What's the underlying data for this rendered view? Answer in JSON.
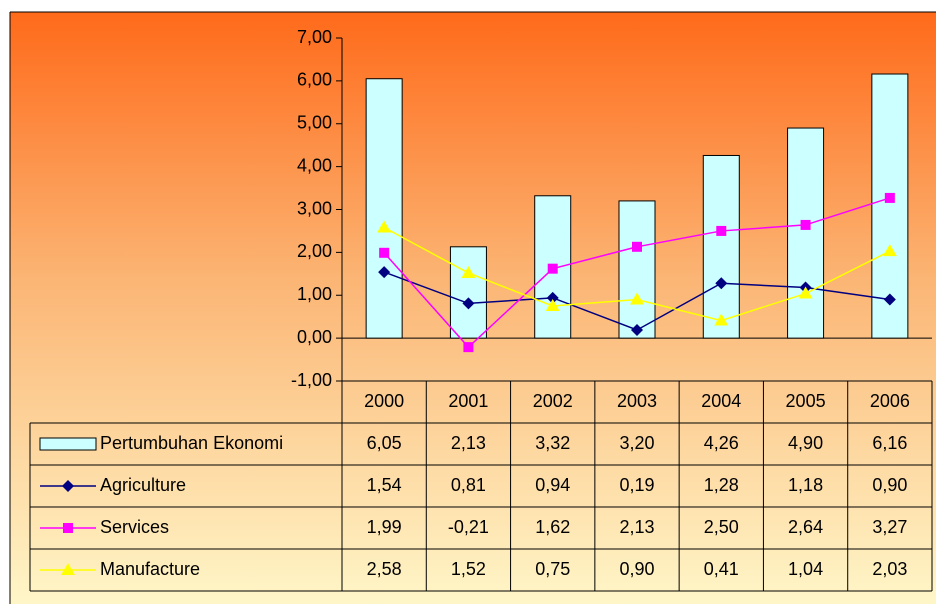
{
  "chart_data": {
    "type": "combo",
    "categories": [
      "2000",
      "2001",
      "2002",
      "2003",
      "2004",
      "2005",
      "2006"
    ],
    "ylim": [
      -1,
      7
    ],
    "yticks": [
      {
        "value": -1,
        "label": "-1,00"
      },
      {
        "value": 0,
        "label": "0,00"
      },
      {
        "value": 1,
        "label": "1,00"
      },
      {
        "value": 2,
        "label": "2,00"
      },
      {
        "value": 3,
        "label": "3,00"
      },
      {
        "value": 4,
        "label": "4,00"
      },
      {
        "value": 5,
        "label": "5,00"
      },
      {
        "value": 6,
        "label": "6,00"
      },
      {
        "value": 7,
        "label": "7,00"
      }
    ],
    "series": [
      {
        "name": "Pertumbuhan Ekonomi",
        "type": "bar",
        "color": "#ccffff",
        "values": [
          6.05,
          2.13,
          3.32,
          3.2,
          4.26,
          4.9,
          6.16
        ],
        "value_labels": [
          "6,05",
          "2,13",
          "3,32",
          "3,20",
          "4,26",
          "4,90",
          "6,16"
        ]
      },
      {
        "name": "Agriculture",
        "type": "line",
        "marker": "diamond",
        "color": "#000080",
        "values": [
          1.54,
          0.81,
          0.94,
          0.19,
          1.28,
          1.18,
          0.9
        ],
        "value_labels": [
          "1,54",
          "0,81",
          "0,94",
          "0,19",
          "1,28",
          "1,18",
          "0,90"
        ]
      },
      {
        "name": "Services",
        "type": "line",
        "marker": "square",
        "color": "#ff00ff",
        "values": [
          1.99,
          -0.21,
          1.62,
          2.13,
          2.5,
          2.64,
          3.27
        ],
        "value_labels": [
          "1,99",
          "-0,21",
          "1,62",
          "2,13",
          "2,50",
          "2,64",
          "3,27"
        ]
      },
      {
        "name": "Manufacture",
        "type": "line",
        "marker": "triangle",
        "color": "#ffff00",
        "values": [
          2.58,
          1.52,
          0.75,
          0.9,
          0.41,
          1.04,
          2.03
        ],
        "value_labels": [
          "2,58",
          "1,52",
          "0,75",
          "0,90",
          "0,41",
          "1,04",
          "2,03"
        ]
      }
    ]
  }
}
